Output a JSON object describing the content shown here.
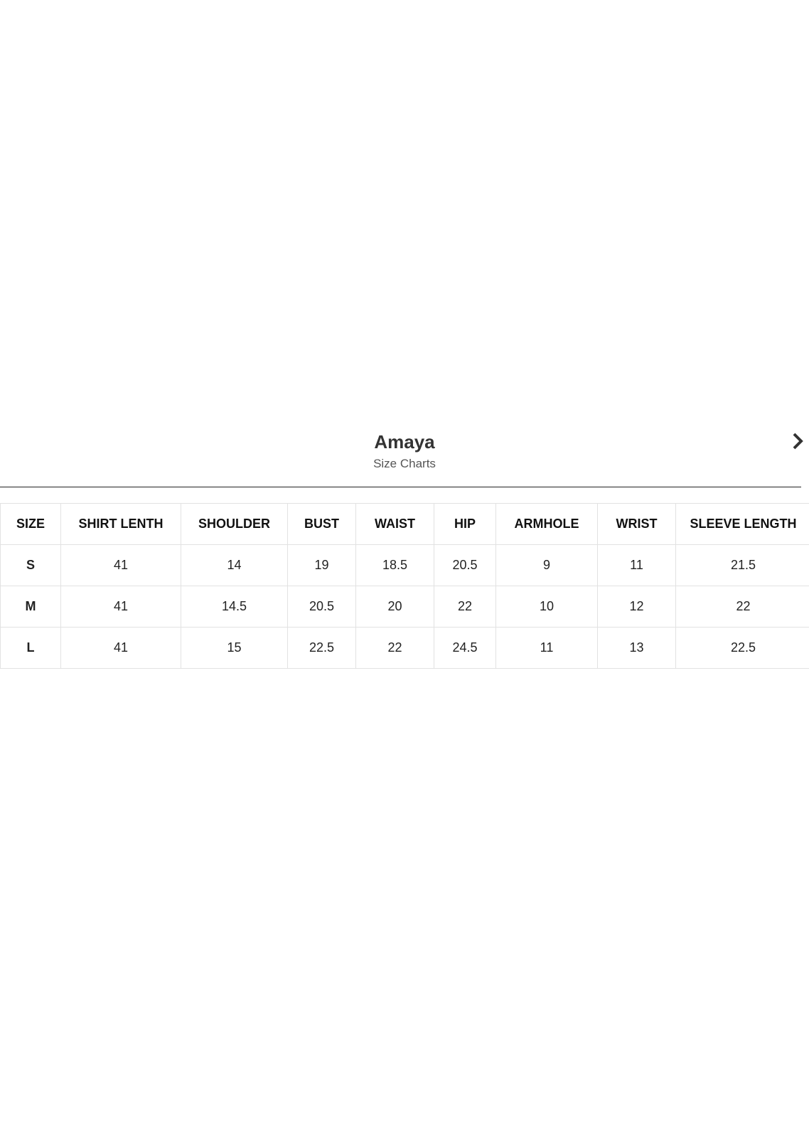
{
  "header": {
    "title": "Amaya",
    "subtitle": "Size Charts",
    "close_icon": "close-chevron-icon"
  },
  "table": {
    "columns": [
      "SIZE",
      "SHIRT LENTH",
      "SHOULDER",
      "BUST",
      "WAIST",
      "HIP",
      "ARMHOLE",
      "WRIST",
      "SLEEVE LENGTH"
    ],
    "rows": [
      [
        "S",
        "41",
        "14",
        "19",
        "18.5",
        "20.5",
        "9",
        "11",
        "21.5"
      ],
      [
        "M",
        "41",
        "14.5",
        "20.5",
        "20",
        "22",
        "10",
        "12",
        "22"
      ],
      [
        "L",
        "41",
        "15",
        "22.5",
        "22",
        "24.5",
        "11",
        "13",
        "22.5"
      ]
    ]
  }
}
